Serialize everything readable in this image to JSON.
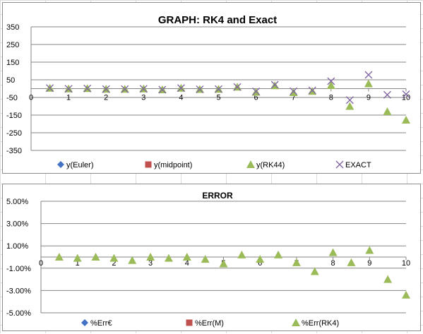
{
  "chart_data": [
    {
      "type": "scatter",
      "title": "GRAPH: RK4 and Exact",
      "xlabel": "",
      "ylabel": "",
      "xlim": [
        0,
        10
      ],
      "ylim": [
        -350,
        350
      ],
      "x_ticks": [
        "0",
        "1",
        "2",
        "3",
        "4",
        "5",
        "6",
        "7",
        "8",
        "9",
        "10"
      ],
      "y_ticks": [
        "350",
        "250",
        "150",
        "50",
        "-50",
        "-150",
        "-250",
        "-350"
      ],
      "grid": "horizontal",
      "legend_position": "bottom",
      "series": [
        {
          "name": "y(Euler)",
          "marker": "diamond",
          "color": "#4472c4",
          "x": [],
          "y": []
        },
        {
          "name": "y(midpoint)",
          "marker": "square",
          "color": "#c0504d",
          "x": [],
          "y": []
        },
        {
          "name": "y(RK44)",
          "marker": "triangle",
          "color": "#9bbb59",
          "x": [
            0.5,
            1,
            1.5,
            2,
            2.5,
            3,
            3.5,
            4,
            4.5,
            5,
            5.5,
            6,
            6.5,
            7,
            7.5,
            8,
            8.5,
            9,
            9.5,
            10
          ],
          "y": [
            3,
            -1,
            1,
            -3,
            -3,
            -1,
            -6,
            3,
            -4,
            -3,
            9,
            -20,
            17,
            -22,
            -15,
            18,
            -100,
            28,
            -130,
            -178
          ]
        },
        {
          "name": "EXACT",
          "marker": "x",
          "color": "#8064a2",
          "x": [
            0.5,
            1,
            1.5,
            2,
            2.5,
            3,
            3.5,
            4,
            4.5,
            5,
            5.5,
            6,
            6.5,
            7,
            7.5,
            8,
            8.5,
            9,
            9.5,
            10
          ],
          "y": [
            3,
            -1,
            1,
            -3,
            -3,
            -1,
            -6,
            3,
            -4,
            -3,
            9,
            -16,
            22,
            -15,
            -10,
            42,
            -65,
            78,
            -35,
            -32
          ]
        }
      ]
    },
    {
      "type": "scatter",
      "title": "ERROR",
      "xlabel": "",
      "ylabel": "",
      "xlim": [
        0,
        10
      ],
      "ylim": [
        -5,
        5
      ],
      "x_ticks": [
        "0",
        "1",
        "2",
        "3",
        "4",
        "5",
        "6",
        "7",
        "8",
        "9",
        "10"
      ],
      "y_ticks": [
        "5.00%",
        "3.00%",
        "1.00%",
        "-1.00%",
        "-3.00%",
        "-5.00%"
      ],
      "grid": "horizontal",
      "legend_position": "bottom",
      "series": [
        {
          "name": "%Err€",
          "marker": "diamond",
          "color": "#4472c4",
          "x": [],
          "y": []
        },
        {
          "name": "%Err(M)",
          "marker": "square",
          "color": "#c0504d",
          "x": [],
          "y": []
        },
        {
          "name": "%Err(RK4)",
          "marker": "triangle",
          "color": "#9bbb59",
          "x": [
            0.5,
            1,
            1.5,
            2,
            2.5,
            3,
            3.5,
            4,
            4.5,
            5,
            5.5,
            6,
            6.5,
            7,
            7.5,
            8,
            8.5,
            9,
            9.5,
            10
          ],
          "y": [
            0.0,
            -0.1,
            0.0,
            -0.1,
            -0.3,
            0.0,
            -0.1,
            0.0,
            -0.2,
            -0.6,
            0.2,
            -0.2,
            0.2,
            -0.5,
            -1.3,
            0.4,
            -0.5,
            0.6,
            -2.0,
            -3.4
          ]
        }
      ]
    }
  ]
}
